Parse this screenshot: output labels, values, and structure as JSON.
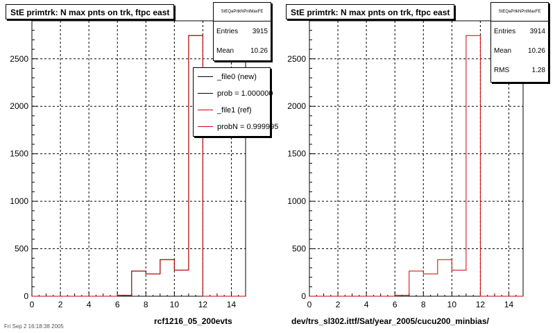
{
  "panels": [
    {
      "title": "StE primtrk: N max pnts on trk, ftpc east",
      "stats": {
        "name": "StEQaPrtkNPntMaxFE",
        "rows": [
          {
            "label": "Entries",
            "value": "3915"
          },
          {
            "label": "Mean",
            "value": "10.26"
          }
        ]
      },
      "legend": [
        {
          "text": "_file0 (new)",
          "color": "#000000"
        },
        {
          "text": "prob = 1.000000",
          "color": "#000000"
        },
        {
          "text": "_file1 (ref)",
          "color": "#cc0000"
        },
        {
          "text": "probN = 0.999995",
          "color": "#cc0000"
        }
      ],
      "footer": "rcf1216_05_200evts"
    },
    {
      "title": "StE primtrk: N max pnts on trk, ftpc east",
      "stats": {
        "name": "StEQaPrtkNPntMaxFE",
        "rows": [
          {
            "label": "Entries",
            "value": "3914"
          },
          {
            "label": "Mean",
            "value": "10.26"
          },
          {
            "label": "RMS",
            "value": "1.28"
          }
        ]
      },
      "legend": [],
      "footer": "dev/trs_sl302.ittf/Sat/year_2005/cucu200_minbias/"
    }
  ],
  "date_text": "Fri Sep 2 16:18:38 2005",
  "chart_data": [
    {
      "type": "bar",
      "title": "StE primtrk: N max pnts on trk, ftpc east",
      "xlabel": "rcf1216_05_200evts",
      "ylabel": "",
      "xlim": [
        0,
        15
      ],
      "ylim": [
        0,
        2900
      ],
      "xticks": [
        0,
        2,
        4,
        6,
        8,
        10,
        12,
        14
      ],
      "yticks": [
        0,
        500,
        1000,
        1500,
        2000,
        2500
      ],
      "grid": true,
      "bin_width": 1,
      "bin_edges": [
        0,
        1,
        2,
        3,
        4,
        5,
        6,
        7,
        8,
        9,
        10,
        11,
        12,
        13,
        14,
        15
      ],
      "series": [
        {
          "name": "_file0 (new)",
          "color": "#000000",
          "values": [
            0,
            0,
            0,
            0,
            0,
            0,
            10,
            265,
            235,
            385,
            275,
            2745,
            0,
            0,
            0
          ]
        },
        {
          "name": "_file1 (ref)",
          "color": "#cc0000",
          "values": [
            0,
            0,
            0,
            0,
            0,
            0,
            10,
            265,
            235,
            385,
            275,
            2745,
            0,
            0,
            0
          ]
        }
      ]
    },
    {
      "type": "bar",
      "title": "StE primtrk: N max pnts on trk, ftpc east",
      "xlabel": "dev/trs_sl302.ittf/Sat/year_2005/cucu200_minbias/",
      "ylabel": "",
      "xlim": [
        0,
        15
      ],
      "ylim": [
        0,
        2900
      ],
      "xticks": [
        0,
        2,
        4,
        6,
        8,
        10,
        12,
        14
      ],
      "yticks": [
        0,
        500,
        1000,
        1500,
        2000,
        2500
      ],
      "grid": true,
      "bin_width": 1,
      "bin_edges": [
        0,
        1,
        2,
        3,
        4,
        5,
        6,
        7,
        8,
        9,
        10,
        11,
        12,
        13,
        14,
        15
      ],
      "series": [
        {
          "name": "",
          "color": "#cc0000",
          "values": [
            0,
            0,
            0,
            0,
            0,
            0,
            10,
            265,
            235,
            385,
            275,
            2745,
            0,
            0,
            0
          ]
        }
      ]
    }
  ]
}
